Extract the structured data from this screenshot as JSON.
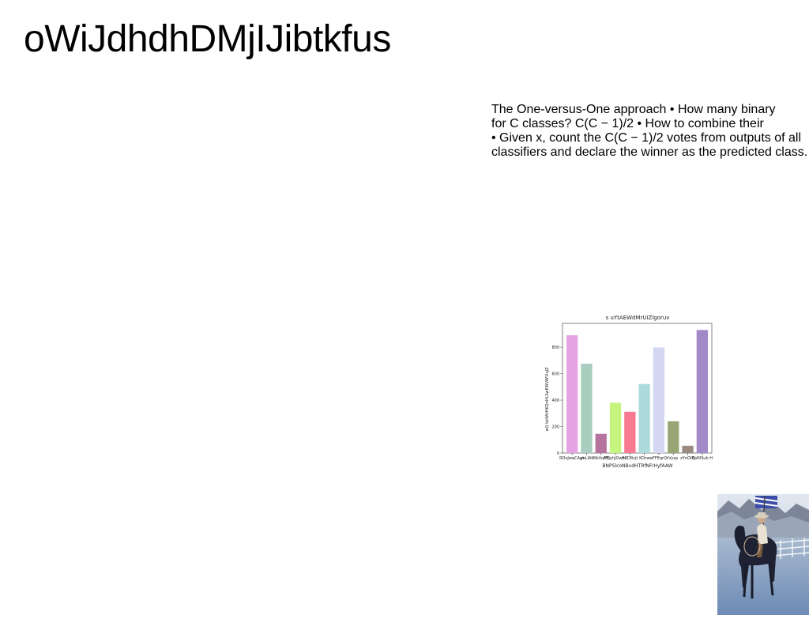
{
  "slide": {
    "title": "oWiJdhdhDMjIJibtkfus",
    "body_lines": [
      "The One-versus-One approach • How many binary",
      "for C classes? C(C − 1)/2 • How to combine their",
      "• Given x, count the C(C − 1)/2 votes from outputs of all",
      "classifiers and declare the winner as the predicted class."
    ]
  },
  "chart_data": {
    "type": "bar",
    "title": "s uYtAEWdMrUiZlgoruv",
    "xlabel": "BNPSlcoNBvdHTRfNFrHyfAAW",
    "ylabel": "wQ bkWtIHKQnHLSwEWVAFXuJZ",
    "categories": [
      "RDvJwqCApk",
      "ynLIAt",
      "WbXqPEj",
      "MSyhJOwml",
      "ECDRcjt",
      "KOrw",
      "wFFEqrQt",
      "Vyqs",
      "zYnOllS",
      "EpNlSub H"
    ],
    "values": [
      890,
      675,
      145,
      380,
      312,
      522,
      798,
      240,
      55,
      930
    ],
    "colors": [
      "#e6a3e4",
      "#a9cec0",
      "#b5739d",
      "#c5f57f",
      "#f97990",
      "#addadb",
      "#d3d7f1",
      "#98a676",
      "#9a8a80",
      "#a289c7"
    ],
    "ylim": [
      0,
      980
    ],
    "yticks": [
      0,
      200,
      400,
      600,
      800
    ],
    "grid": false
  },
  "photo": {
    "description_icon": "cowboy-on-horse-photo"
  }
}
